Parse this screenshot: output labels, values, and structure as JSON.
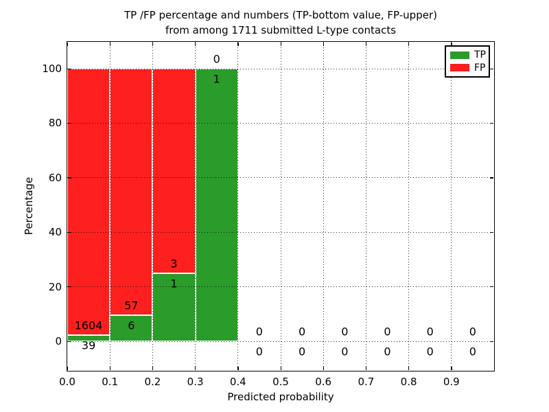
{
  "header": {
    "title_line1": "TP /FP percentage and numbers (TP-bottom value, FP-upper)",
    "title_line2": "from among 1711 submitted L-type contacts"
  },
  "chart_data": {
    "type": "bar",
    "stacked": true,
    "title": "TP /FP percentage and numbers (TP-bottom value, FP-upper)\nfrom among 1711 submitted L-type contacts",
    "xlabel": "Predicted probability",
    "ylabel": "Percentage",
    "xlim": [
      0.0,
      1.0
    ],
    "ylim": [
      -11,
      110
    ],
    "bin_width": 0.1,
    "x_tick_labels": [
      "0.0",
      "0.1",
      "0.2",
      "0.3",
      "0.4",
      "0.5",
      "0.6",
      "0.7",
      "0.8",
      "0.9"
    ],
    "y_tick_labels": [
      "0",
      "20",
      "40",
      "60",
      "80",
      "100"
    ],
    "y_tick_values": [
      0,
      20,
      40,
      60,
      80,
      100
    ],
    "grid": "dotted, both axes, drawn above bars",
    "categories": [
      "0.0-0.1",
      "0.1-0.2",
      "0.2-0.3",
      "0.3-0.4",
      "0.4-0.5",
      "0.5-0.6",
      "0.6-0.7",
      "0.7-0.8",
      "0.8-0.9",
      "0.9-1.0"
    ],
    "series": [
      {
        "name": "TP",
        "color": "#2a9c2a",
        "counts": [
          39,
          6,
          1,
          1,
          0,
          0,
          0,
          0,
          0,
          0
        ],
        "pct": [
          2.37,
          9.52,
          25.0,
          100.0,
          0,
          0,
          0,
          0,
          0,
          0
        ]
      },
      {
        "name": "FP",
        "color": "#fe1f1f",
        "counts": [
          1604,
          57,
          3,
          0,
          0,
          0,
          0,
          0,
          0,
          0
        ],
        "pct": [
          97.63,
          90.48,
          75.0,
          0,
          0,
          0,
          0,
          0,
          0,
          0
        ]
      }
    ],
    "total_submitted": 1711,
    "legend": {
      "position": "upper right",
      "entries": [
        {
          "label": "TP"
        },
        {
          "label": "FP"
        }
      ]
    },
    "annotation_rule": "FP count printed above TP/FP boundary, TP count printed below it, at each bin center"
  }
}
